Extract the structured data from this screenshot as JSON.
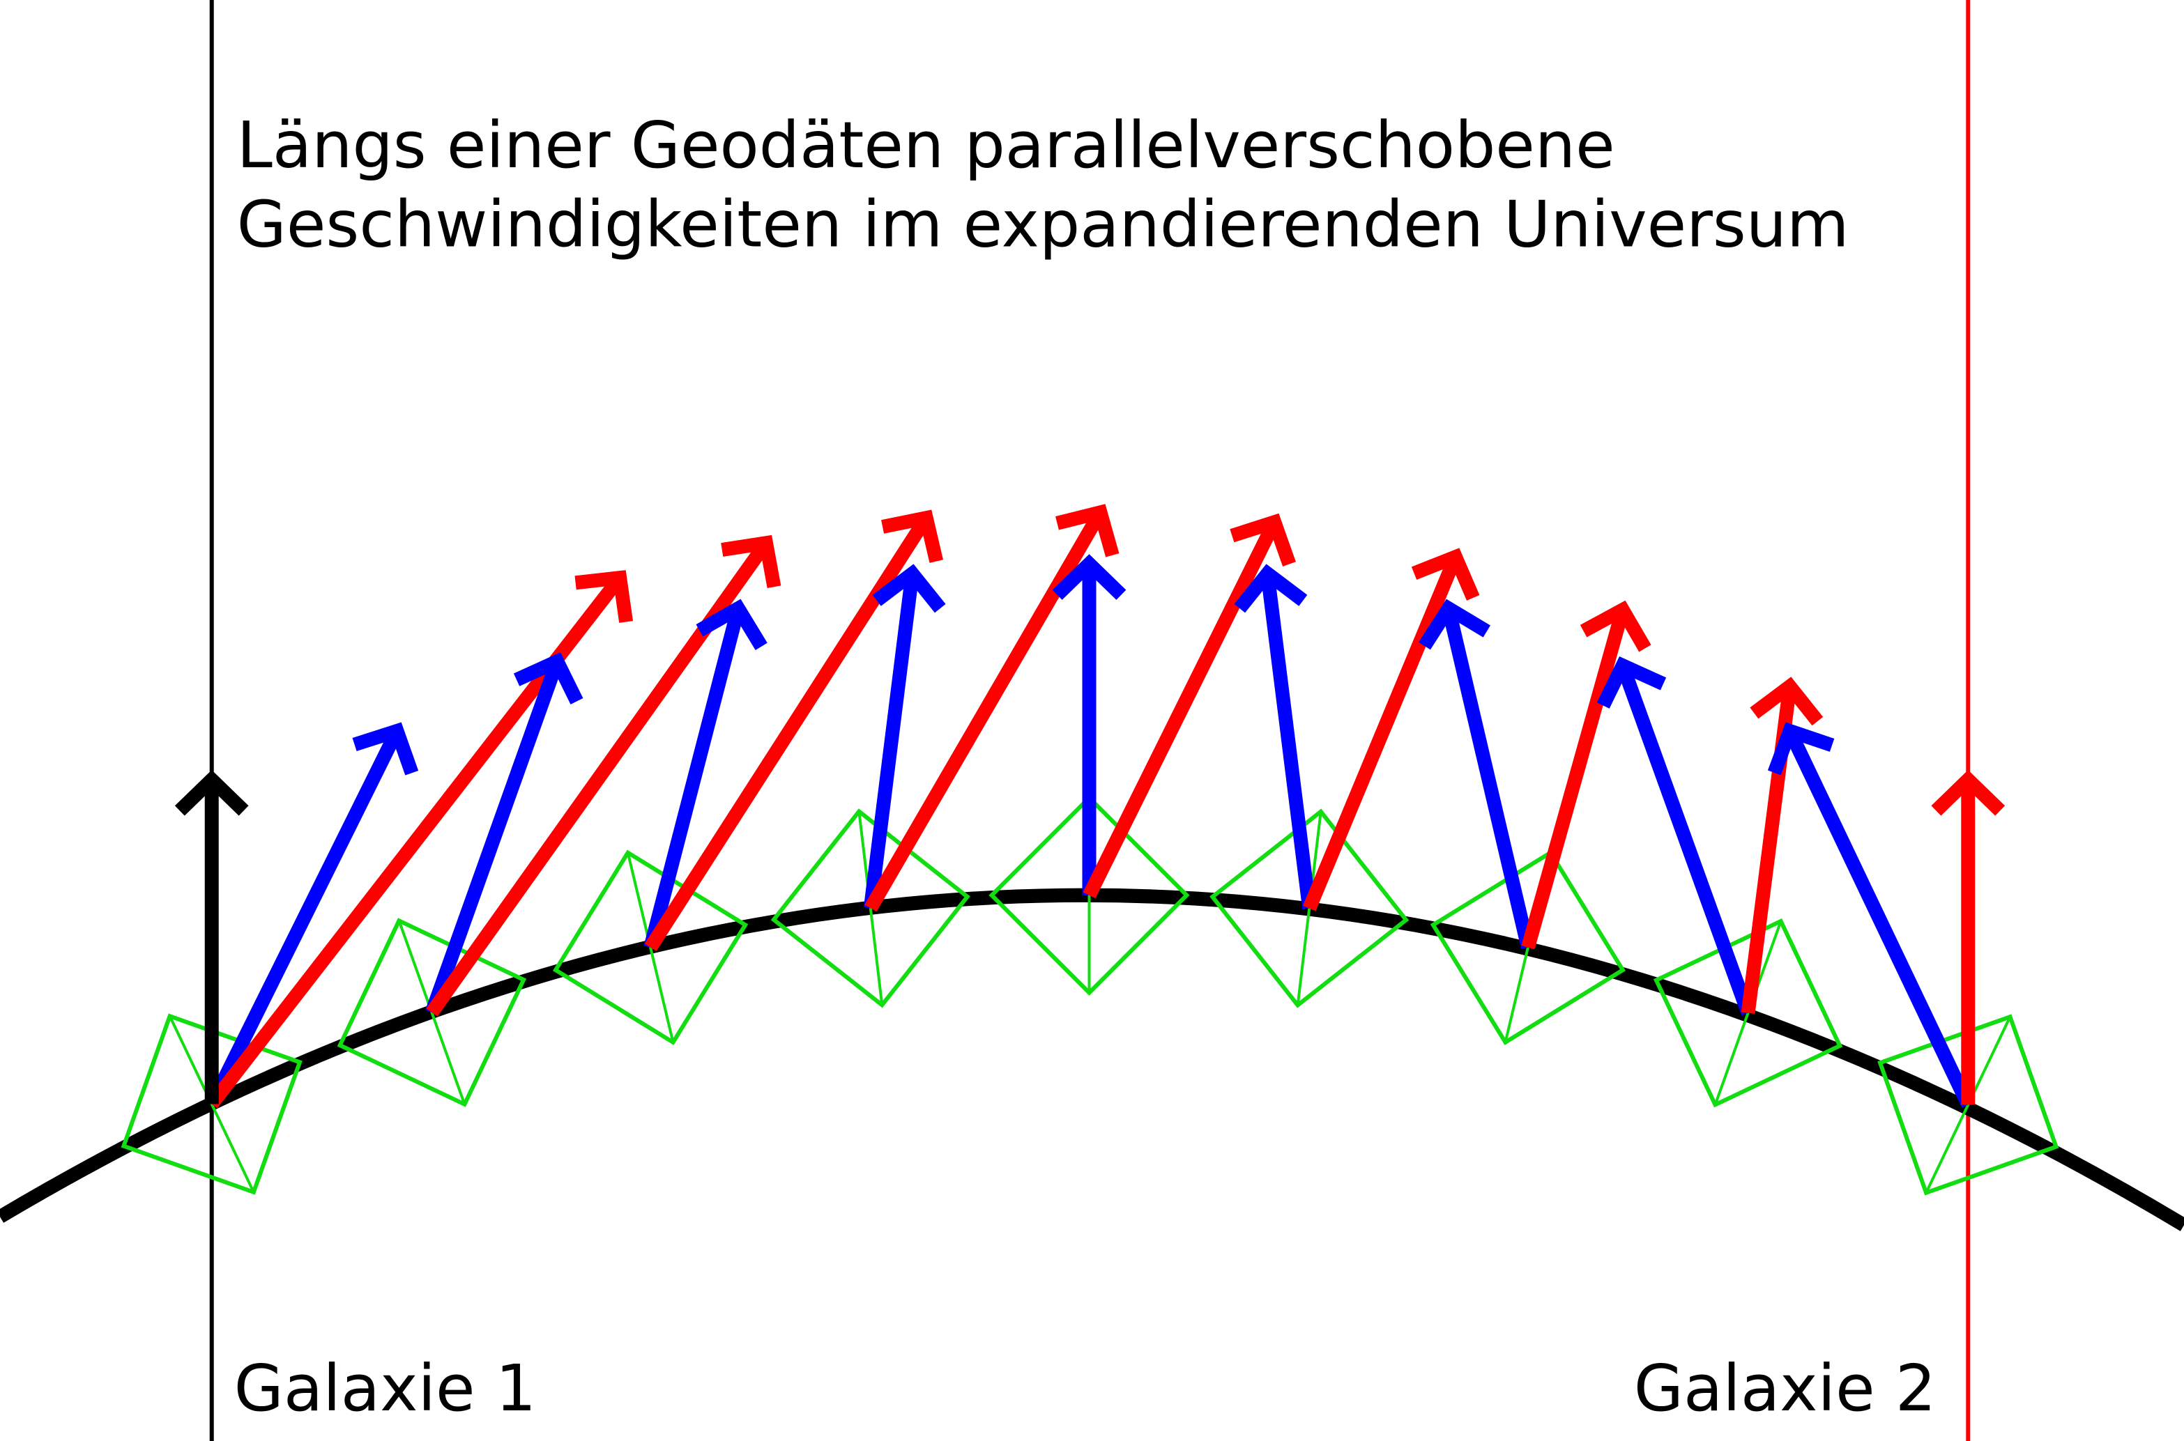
{
  "title": {
    "lines": [
      "Längs einer Geodäten parallelverschobene",
      "Geschwindigkeiten im expandierenden Universum"
    ]
  },
  "labels": {
    "galaxy_1": "Galaxie 1",
    "galaxy_2": "Galaxie 2"
  }
}
